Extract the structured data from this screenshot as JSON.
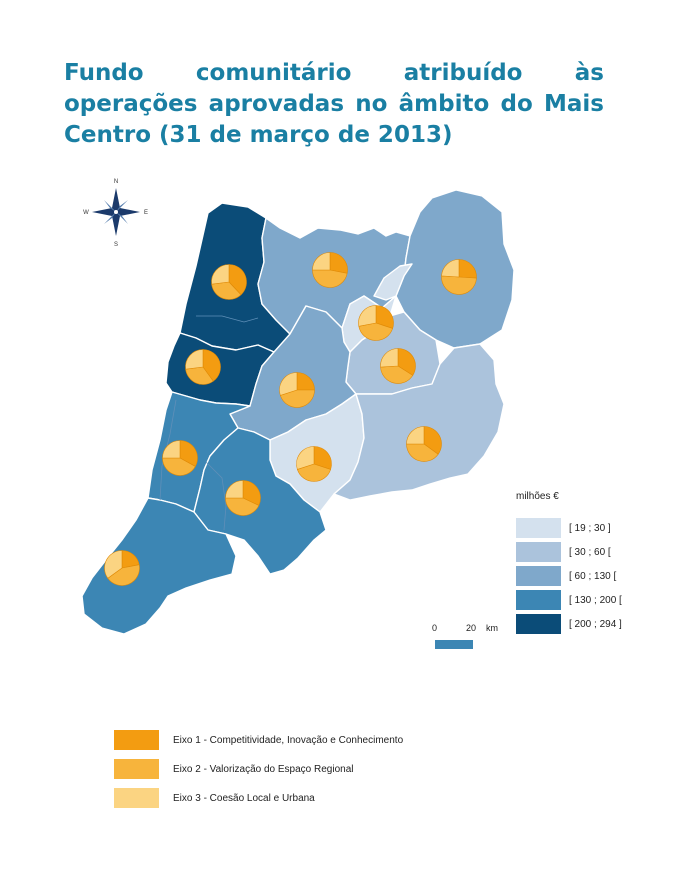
{
  "title": "Fundo comunitário atribuído às operações aprovadas no âmbito do Mais Centro (31 de março de 2013)",
  "compass": {
    "n": "N",
    "s": "S",
    "e": "E",
    "w": "W"
  },
  "colors": {
    "class1": "#d4e1ee",
    "class2": "#abc3dc",
    "class3": "#7fa8cb",
    "class4": "#3c86b4",
    "class5": "#0b4c78",
    "eixo1": "#f39c11",
    "eixo2": "#f7b43c",
    "eixo3": "#fbd482",
    "border": "#ffffff",
    "water": "#ffffff"
  },
  "legend": {
    "caption": "milhões €",
    "classes": [
      {
        "label": "[ 19 ; 30 ]",
        "color": "#d4e1ee"
      },
      {
        "label": "[ 30 ; 60 [",
        "color": "#abc3dc"
      },
      {
        "label": "[ 60 ; 130 [",
        "color": "#7fa8cb"
      },
      {
        "label": "[ 130 ; 200 [",
        "color": "#3c86b4"
      },
      {
        "label": "[ 200 ; 294 ]",
        "color": "#0b4c78"
      }
    ]
  },
  "scale": {
    "zero": "0",
    "distance": "20",
    "unit": "km"
  },
  "eixos": [
    {
      "label": "Eixo 1 - Competitividade, Inovação e Conhecimento",
      "color": "#f39c11"
    },
    {
      "label": "Eixo 2 - Valorização do Espaço Regional",
      "color": "#f7b43c"
    },
    {
      "label": "Eixo 3 - Coesão Local e Urbana",
      "color": "#fbd482"
    }
  ],
  "regions": [
    {
      "id": "baixo-vouga",
      "class": 5,
      "shares": [
        0.38,
        0.35,
        0.27
      ]
    },
    {
      "id": "baixo-mondego",
      "class": 5,
      "shares": [
        0.4,
        0.33,
        0.27
      ]
    },
    {
      "id": "dao-lafoes",
      "class": 3,
      "shares": [
        0.28,
        0.47,
        0.25
      ]
    },
    {
      "id": "beira-interior-norte",
      "class": 3,
      "shares": [
        0.26,
        0.5,
        0.24
      ]
    },
    {
      "id": "serra-da-estrela",
      "class": 1,
      "shares": [
        0.3,
        0.42,
        0.28
      ]
    },
    {
      "id": "cova-da-beira",
      "class": 2,
      "shares": [
        0.34,
        0.4,
        0.26
      ]
    },
    {
      "id": "pinhal-interior-norte",
      "class": 3,
      "shares": [
        0.25,
        0.45,
        0.3
      ]
    },
    {
      "id": "pinhal-interior-sul",
      "class": 1,
      "shares": [
        0.3,
        0.4,
        0.3
      ]
    },
    {
      "id": "beira-interior-sul",
      "class": 2,
      "shares": [
        0.35,
        0.4,
        0.25
      ]
    },
    {
      "id": "pinhal-litoral",
      "class": 4,
      "shares": [
        0.33,
        0.42,
        0.25
      ]
    },
    {
      "id": "medio-tejo",
      "class": 4,
      "shares": [
        0.32,
        0.43,
        0.25
      ]
    },
    {
      "id": "oeste",
      "class": 4,
      "shares": [
        0.22,
        0.43,
        0.35
      ]
    }
  ]
}
